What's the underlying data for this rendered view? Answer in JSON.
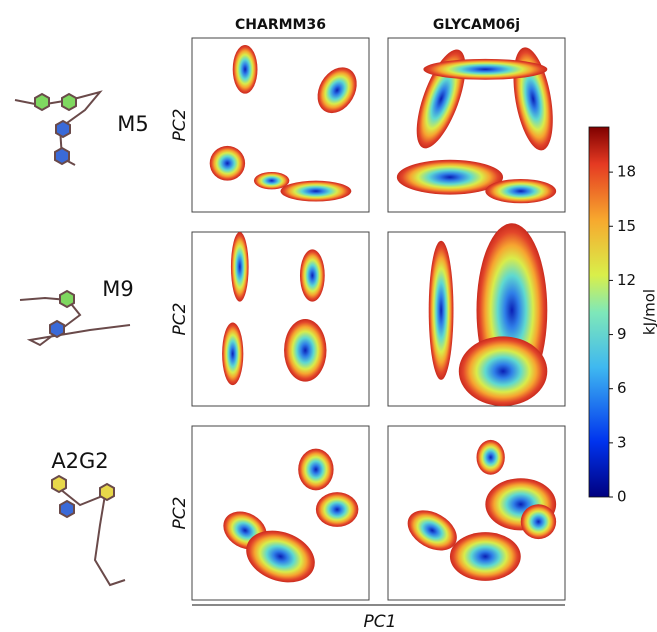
{
  "columns": [
    "CHARMM36",
    "GLYCAM06j"
  ],
  "rows": [
    {
      "label": "M5",
      "y_axis": "PC2"
    },
    {
      "label": "M9",
      "y_axis": "PC2"
    },
    {
      "label": "A2G2",
      "y_axis": "PC2"
    }
  ],
  "x_axis": "PC1",
  "colorbar": {
    "label": "kJ/mol",
    "lim": [
      0,
      20.5
    ],
    "ticks": [
      0,
      3,
      6,
      9,
      12,
      15,
      18
    ]
  }
}
